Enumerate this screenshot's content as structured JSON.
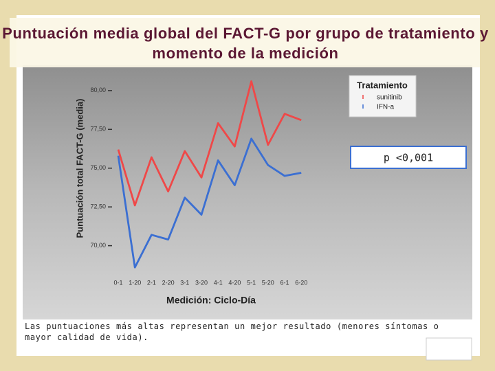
{
  "chart_data": {
    "type": "line",
    "title": "Puntuación media global del FACT-G por grupo de tratamiento y momento de la medición",
    "y_label": "Puntuación total FACT-G (media)",
    "x_label": "Medición: Ciclo-Día",
    "legend_title": "Tratamiento",
    "annotation": "p <0,001",
    "caption": "Las puntuaciones más altas representan un mejor resultado (menores síntomas o mayor calidad de vida).",
    "categories": [
      "0-1",
      "1-20",
      "2-1",
      "2-20",
      "3-1",
      "3-20",
      "4-1",
      "4-20",
      "5-1",
      "5-20",
      "6-1",
      "6-20"
    ],
    "series": [
      {
        "name": "sunitinib",
        "color": "#ef4848",
        "values": [
          76.2,
          72.6,
          75.7,
          73.5,
          76.1,
          74.4,
          77.9,
          76.4,
          80.6,
          76.5,
          78.5,
          78.1
        ]
      },
      {
        "name": "IFN-a",
        "color": "#3b6fd2",
        "values": [
          75.8,
          68.6,
          70.7,
          70.4,
          73.1,
          72.0,
          75.5,
          73.9,
          76.9,
          75.2,
          74.5,
          74.7
        ]
      }
    ],
    "ylim": [
      68.3,
      81.5
    ],
    "yticks": [
      {
        "value": 70,
        "label": "70,00"
      },
      {
        "value": 72.5,
        "label": "72,50"
      },
      {
        "value": 75,
        "label": "75,00"
      },
      {
        "value": 77.5,
        "label": "77,50"
      },
      {
        "value": 80,
        "label": "80,00"
      }
    ],
    "grid": false,
    "legend": "top-right"
  }
}
